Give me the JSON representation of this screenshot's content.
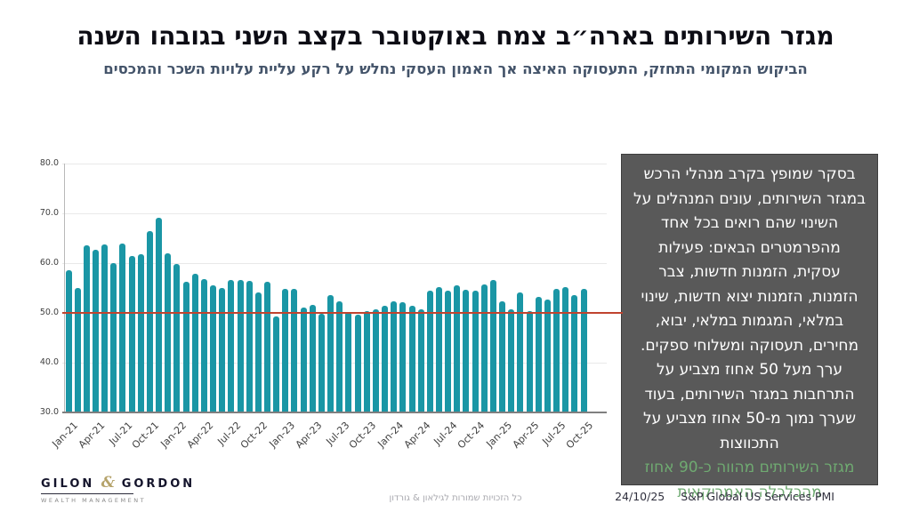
{
  "title": "מגזר השירותים בארה״ב צמח באוקטובר בקצב השני בגובהו השנה",
  "subtitle": "הביקוש המקומי התחזק, התעסוקה האיצה אך האמון העסקי נחלש על רקע עליית עלויות השכר והמכסים",
  "side_panel": {
    "body": "בסקר שמופץ בקרב מנהלי הרכש במגזר השירותים, עונים המנהלים על השינוי שהם רואים בכל אחד מהפרמטרים הבאים: פעילות עסקית, הזמנות חדשות, צבר הזמנות, הזמנות יצוא חדשות, שינוי במלאי, המגמות במלאי, יבוא, מחירים, תעסוקה ומשלוחי ספקים. ערך מעל 50 אחוז מצביע על התרחבות במגזר השירותים, בעוד שערך נמוך מ-50 אחוז מצביע על התכווצות",
    "highlight": "מגזר השירותים מהווה כ-90 אחוז מהכלכלה האמריקאית",
    "bg_color": "#595959",
    "text_color": "#ffffff",
    "highlight_color": "#6faa71"
  },
  "footer": {
    "logo_name_left": "GILON",
    "logo_amp": "&",
    "logo_name_right": "GORDON",
    "logo_tagline": "WEALTH MANAGEMENT",
    "copyright": "כל הזכויות שמורות לגילאון & גורדון",
    "date": "24/10/25",
    "source": "S&P Global US Services PMI"
  },
  "chart_data": {
    "type": "bar",
    "title": "",
    "xlabel": "",
    "ylabel": "",
    "ylim": [
      30,
      80
    ],
    "yticks": [
      30,
      40,
      50,
      60,
      70,
      80
    ],
    "ytick_labels": [
      "30.0",
      "40.0",
      "50.0",
      "60.0",
      "70.0",
      "80.0"
    ],
    "grid": true,
    "bar_color": "#1a96a5",
    "reference_line": {
      "value": 50,
      "color": "#c0432f"
    },
    "xtick_every": 3,
    "xticks_shown": [
      "Jan-21",
      "Apr-21",
      "Jul-21",
      "Oct-21",
      "Jan-22",
      "Apr-22",
      "Jul-22",
      "Oct-22",
      "Jan-23",
      "Apr-23",
      "Jul-23",
      "Oct-23",
      "Jan-24",
      "Apr-24",
      "Jul-24",
      "Oct-24",
      "Jan-25",
      "Apr-25",
      "Jul-25",
      "Oct-25"
    ],
    "x": [
      "Jan-21",
      "Feb-21",
      "Mar-21",
      "Apr-21",
      "May-21",
      "Jun-21",
      "Jul-21",
      "Aug-21",
      "Sep-21",
      "Oct-21",
      "Nov-21",
      "Dec-21",
      "Jan-22",
      "Feb-22",
      "Mar-22",
      "Apr-22",
      "May-22",
      "Jun-22",
      "Jul-22",
      "Aug-22",
      "Sep-22",
      "Oct-22",
      "Nov-22",
      "Dec-22",
      "Jan-23",
      "Feb-23",
      "Mar-23",
      "Apr-23",
      "May-23",
      "Jun-23",
      "Jul-23",
      "Aug-23",
      "Sep-23",
      "Oct-23",
      "Nov-23",
      "Dec-23",
      "Jan-24",
      "Feb-24",
      "Mar-24",
      "Apr-24",
      "May-24",
      "Jun-24",
      "Jul-24",
      "Aug-24",
      "Sep-24",
      "Oct-24",
      "Nov-24",
      "Dec-24",
      "Jan-25",
      "Feb-25",
      "Mar-25",
      "Apr-25",
      "May-25",
      "Jun-25",
      "Jul-25",
      "Aug-25",
      "Sep-25",
      "Oct-25"
    ],
    "values": [
      58.5,
      55.0,
      63.5,
      62.6,
      63.8,
      60.0,
      63.9,
      61.5,
      61.7,
      66.4,
      69.1,
      61.9,
      59.8,
      56.3,
      57.9,
      56.8,
      55.6,
      55.0,
      56.6,
      56.6,
      56.4,
      54.1,
      56.3,
      49.3,
      54.9,
      54.8,
      51.0,
      51.6,
      49.9,
      53.6,
      52.3,
      50.2,
      49.7,
      50.4,
      50.7,
      51.4,
      52.3,
      52.1,
      51.4,
      50.8,
      54.5,
      55.1,
      54.5,
      55.5,
      54.6,
      54.4,
      55.7,
      56.6,
      52.4,
      50.8,
      54.1,
      50.4,
      53.2,
      52.6,
      54.8,
      55.1,
      53.6,
      54.8
    ]
  }
}
